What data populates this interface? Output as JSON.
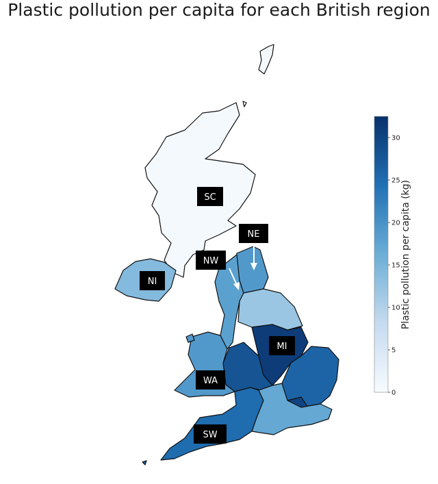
{
  "title": "Plastic pollution per capita for each British region",
  "colorbar": {
    "label": "Plastic pollution per capita (kg)",
    "min": 0,
    "max": 32.5,
    "ticks": [
      0,
      5,
      10,
      15,
      20,
      25,
      30
    ],
    "color_low": "#f7fbff",
    "color_high": "#08306b"
  },
  "labels": {
    "SC": "SC",
    "NE": "NE",
    "NW": "NW",
    "NI": "NI",
    "MI": "MI",
    "WA": "WA",
    "SW": "SW"
  },
  "chart_data": {
    "type": "choropleth",
    "value_label": "Plastic pollution per capita (kg)",
    "regions": [
      {
        "id": "SC",
        "value": 0.5
      },
      {
        "id": "NI",
        "value": 14
      },
      {
        "id": "NE",
        "value": 19
      },
      {
        "id": "NW",
        "value": 18
      },
      {
        "id": "YH",
        "value": 12
      },
      {
        "id": "MI",
        "value": 31
      },
      {
        "id": "WM",
        "value": 28
      },
      {
        "id": "EE",
        "value": 26
      },
      {
        "id": "LO",
        "value": 30
      },
      {
        "id": "WA",
        "value": 19
      },
      {
        "id": "SW",
        "value": 25
      },
      {
        "id": "SE",
        "value": 17
      }
    ]
  }
}
